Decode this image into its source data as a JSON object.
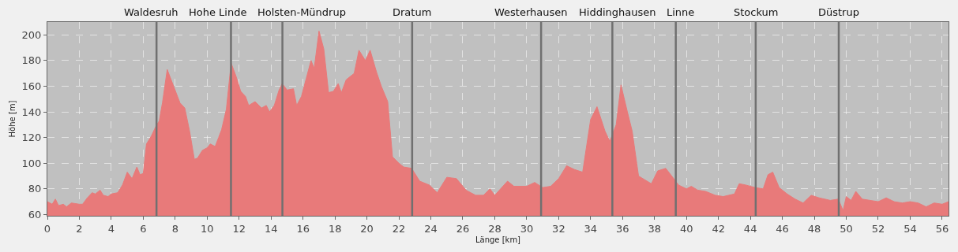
{
  "chart_data": {
    "type": "area",
    "xlabel": "Länge [km]",
    "ylabel": "Höhe [m]",
    "x": [
      0,
      0.3,
      0.5,
      0.7,
      1.0,
      1.2,
      1.5,
      2.0,
      2.2,
      2.5,
      2.8,
      3.0,
      3.3,
      3.5,
      3.8,
      4.0,
      4.4,
      4.7,
      5.0,
      5.3,
      5.6,
      5.8,
      6.0,
      6.2,
      6.5,
      6.8,
      7.0,
      7.2,
      7.5,
      7.9,
      8.3,
      8.6,
      8.9,
      9.2,
      9.4,
      9.7,
      10.0,
      10.2,
      10.5,
      10.9,
      11.2,
      11.5,
      11.8,
      12.1,
      12.4,
      12.6,
      13.0,
      13.4,
      13.7,
      13.9,
      14.2,
      14.5,
      14.7,
      15.0,
      15.4,
      15.6,
      15.9,
      16.2,
      16.5,
      16.7,
      17.0,
      17.3,
      17.6,
      17.9,
      18.2,
      18.4,
      18.7,
      19.2,
      19.5,
      19.9,
      20.2,
      20.6,
      20.9,
      21.3,
      21.6,
      22.0,
      22.3,
      22.8,
      23.3,
      23.9,
      24.4,
      25.0,
      25.6,
      26.2,
      26.8,
      27.3,
      27.7,
      28.0,
      28.8,
      29.2,
      30.0,
      30.5,
      31.0,
      31.5,
      32.0,
      32.5,
      33.0,
      33.5,
      34.0,
      34.4,
      34.9,
      35.2,
      35.6,
      35.9,
      36.3,
      36.6,
      37.0,
      37.4,
      37.8,
      38.2,
      38.7,
      39.2,
      39.5,
      40.0,
      40.3,
      40.7,
      41.2,
      41.8,
      42.3,
      43.0,
      43.3,
      43.7,
      44.3,
      44.8,
      45.1,
      45.4,
      45.8,
      46.3,
      46.8,
      47.3,
      47.8,
      48.3,
      49.0,
      49.5,
      49.8,
      50.0,
      50.3,
      50.6,
      51.0,
      51.5,
      52.0,
      52.5,
      53.0,
      53.5,
      54.0,
      54.5,
      55.0,
      55.5,
      56.0,
      56.4
    ],
    "series": [
      {
        "color": "#e87a7a",
        "values": [
          70,
          68,
          72,
          67,
          68,
          66,
          69,
          68,
          68,
          73,
          77,
          76,
          79,
          75,
          74,
          76,
          77,
          83,
          93,
          88,
          97,
          91,
          92,
          115,
          121,
          129,
          133,
          147,
          173,
          160,
          147,
          143,
          125,
          103,
          104,
          110,
          112,
          115,
          113,
          126,
          142,
          178,
          168,
          156,
          152,
          145,
          148,
          143,
          145,
          140,
          145,
          157,
          162,
          157,
          158,
          145,
          152,
          166,
          180,
          174,
          203,
          189,
          155,
          156,
          162,
          155,
          165,
          170,
          188,
          180,
          188,
          171,
          160,
          148,
          105,
          100,
          97,
          96,
          86,
          83,
          77,
          89,
          88,
          79,
          75,
          75,
          80,
          75,
          86,
          82,
          82,
          85,
          81,
          82,
          88,
          98,
          95,
          93,
          134,
          144,
          125,
          117,
          130,
          161,
          140,
          125,
          90,
          87,
          84,
          94,
          96,
          88,
          83,
          80,
          82,
          79,
          78,
          75,
          74,
          76,
          84,
          83,
          81,
          80,
          91,
          93,
          81,
          76,
          72,
          69,
          75,
          73,
          71,
          72,
          63,
          74,
          71,
          78,
          72,
          71,
          70,
          73,
          70,
          69,
          70,
          69,
          66,
          69,
          68,
          70
        ]
      }
    ],
    "xlim": [
      0,
      56.4
    ],
    "ylim": [
      59,
      210
    ],
    "xticks": [
      0,
      2,
      4,
      6,
      8,
      10,
      12,
      14,
      16,
      18,
      20,
      22,
      24,
      26,
      28,
      30,
      32,
      34,
      36,
      38,
      40,
      42,
      44,
      46,
      48,
      50,
      52,
      54,
      56
    ],
    "yticks": [
      60,
      80,
      100,
      120,
      140,
      160,
      180,
      200
    ],
    "grid": true,
    "ref_lines": [
      {
        "axis": "x",
        "value": 6.83,
        "label": "Waldesruh",
        "color": "#707070"
      },
      {
        "axis": "x",
        "value": 11.49,
        "label": "Hohe Linde",
        "color": "#707070"
      },
      {
        "axis": "x",
        "value": 14.71,
        "label": "Holsten-Mündrup",
        "color": "#707070"
      },
      {
        "axis": "x",
        "value": 22.83,
        "label": "Dratum",
        "color": "#707070"
      },
      {
        "axis": "x",
        "value": 30.9,
        "label": "Westerhausen",
        "color": "#707070"
      },
      {
        "axis": "x",
        "value": 35.36,
        "label": "Hiddinghausen",
        "color": "#707070"
      },
      {
        "axis": "x",
        "value": 39.33,
        "label": "Linne",
        "color": "#707070"
      },
      {
        "axis": "x",
        "value": 44.33,
        "label": "Stockum",
        "color": "#707070"
      },
      {
        "axis": "x",
        "value": 49.53,
        "label": "Düstrup",
        "color": "#707070"
      }
    ]
  }
}
